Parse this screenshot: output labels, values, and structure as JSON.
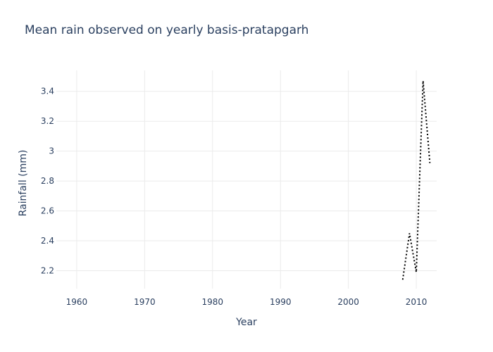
{
  "chart_data": {
    "type": "line",
    "title": "Mean rain observed on yearly basis-pratapgarh",
    "xlabel": "Year",
    "ylabel": "Rainfall (mm)",
    "xlim": [
      1957,
      2013
    ],
    "ylim": [
      2.08,
      3.54
    ],
    "x_ticks": [
      1960,
      1970,
      1980,
      1990,
      2000,
      2010
    ],
    "y_ticks": [
      2.2,
      2.4,
      2.6,
      2.8,
      3,
      3.2,
      3.4
    ],
    "y_tick_labels": [
      "2.2",
      "2.4",
      "2.6",
      "2.8",
      "3",
      "3.2",
      "3.4"
    ],
    "grid": true,
    "line_style": "dotted",
    "line_color": "#000000",
    "series": [
      {
        "x": [
          2008,
          2009,
          2010,
          2011,
          2012
        ],
        "y": [
          2.14,
          2.45,
          2.19,
          3.47,
          2.92
        ]
      }
    ]
  }
}
